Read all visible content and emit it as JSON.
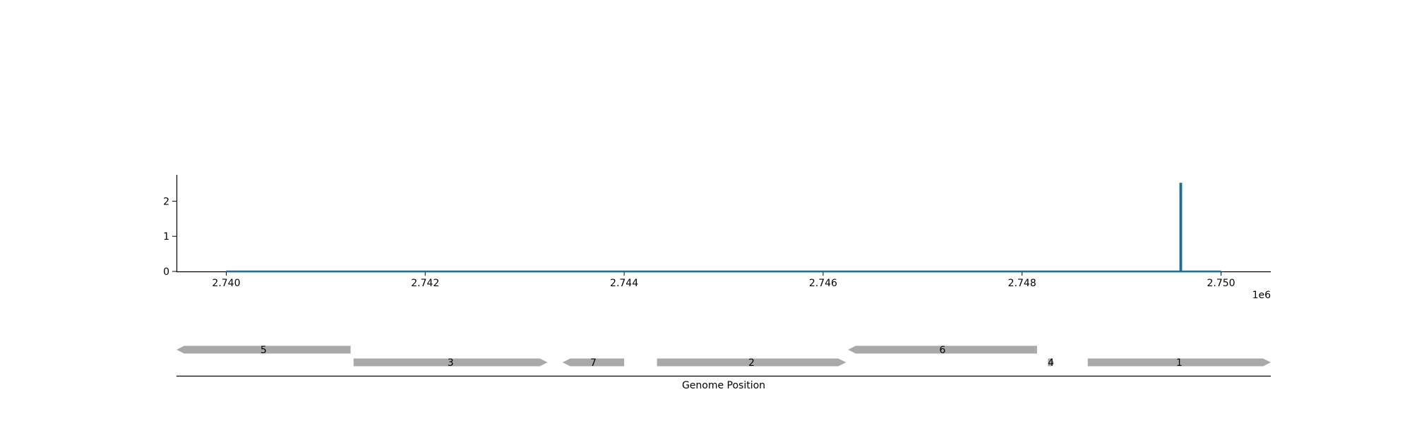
{
  "chart_data": [
    {
      "type": "line",
      "x_offset_label": "1e6",
      "x_ticks": [
        2740000,
        2742000,
        2744000,
        2746000,
        2748000,
        2750000
      ],
      "x_tick_labels": [
        "2.740",
        "2.742",
        "2.744",
        "2.746",
        "2.748",
        "2.750"
      ],
      "y_ticks": [
        0,
        1,
        2
      ],
      "y_tick_labels": [
        "0",
        "1",
        "2"
      ],
      "xlim": [
        2739500,
        2750500
      ],
      "ylim": [
        0,
        2.75
      ],
      "grid": false,
      "series": [
        {
          "color": "#1f6e96",
          "points": [
            [
              2740000,
              0
            ],
            [
              2749590,
              0
            ],
            [
              2749590,
              2.5
            ],
            [
              2749600,
              2.5
            ],
            [
              2749600,
              0
            ],
            [
              2750000,
              0
            ]
          ]
        }
      ]
    },
    {
      "type": "gene-track",
      "xlabel": "Genome Position",
      "xlim": [
        2739500,
        2750500
      ],
      "feature_color": "#a9a9a9",
      "genes": [
        {
          "label": "5",
          "start": 2739500,
          "end": 2741250,
          "strand": -1,
          "row": 0
        },
        {
          "label": "3",
          "start": 2741280,
          "end": 2743230,
          "strand": 1,
          "row": 1
        },
        {
          "label": "7",
          "start": 2743380,
          "end": 2744000,
          "strand": -1,
          "row": 1
        },
        {
          "label": "2",
          "start": 2744330,
          "end": 2746230,
          "strand": 1,
          "row": 1
        },
        {
          "label": "6",
          "start": 2746250,
          "end": 2748150,
          "strand": -1,
          "row": 0
        },
        {
          "label": "4",
          "start": 2748260,
          "end": 2748320,
          "strand": 1,
          "row": 1
        },
        {
          "label": "1",
          "start": 2748660,
          "end": 2750500,
          "strand": 1,
          "row": 1
        }
      ]
    }
  ]
}
